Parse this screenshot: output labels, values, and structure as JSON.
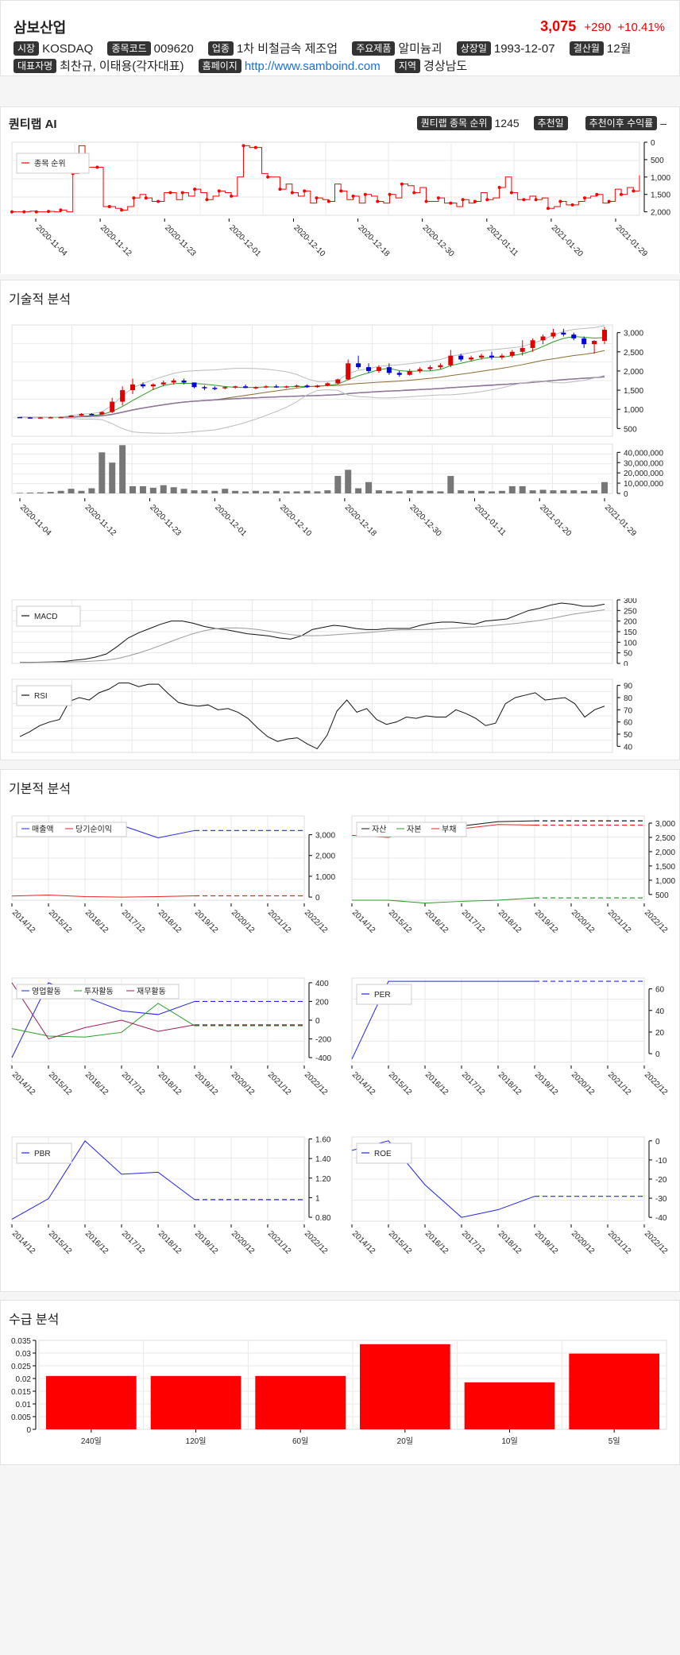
{
  "header": {
    "name": "삼보산업",
    "price": "3,075",
    "change": "+290",
    "change_pct": "+10.41%"
  },
  "info": {
    "market_label": "시장",
    "market": "KOSDAQ",
    "code_label": "종목코드",
    "code": "009620",
    "industry_label": "업종",
    "industry": "1차 비철금속 제조업",
    "product_label": "주요제품",
    "product": "알미늄괴",
    "listed_label": "상장일",
    "listed": "1993-12-07",
    "fiscal_label": "결산월",
    "fiscal": "12월",
    "ceo_label": "대표자명",
    "ceo": "최찬규, 이태용(각자대표)",
    "homepage_label": "홈페이지",
    "homepage": "http://www.samboind.com",
    "region_label": "지역",
    "region": "경상남도"
  },
  "ai": {
    "title": "퀀티랩 AI",
    "rank_label": "퀀티랩 종목 순위",
    "rank": "1245",
    "rec_date_label": "추천일",
    "rec_date": "",
    "rec_return_label": "추천이후 수익률",
    "rec_return": "–"
  },
  "sections": {
    "technical": "기술적 분석",
    "fundamental": "기본적 분석",
    "supply": "수급 분석"
  },
  "colors": {
    "up": "#e00000",
    "down": "#0000dd",
    "line": "#ff0000"
  },
  "chart_data": [
    {
      "id": "rank",
      "type": "line",
      "series": [
        {
          "name": "종목 순위",
          "values": [
            2000,
            2000,
            2000,
            1980,
            2000,
            2000,
            1990,
            2000,
            1950,
            2000,
            900,
            100,
            720,
            720,
            720,
            1850,
            1850,
            1900,
            1950,
            1850,
            1600,
            1500,
            1600,
            1700,
            1700,
            1450,
            1450,
            1650,
            1450,
            1550,
            1350,
            1450,
            1650,
            1550,
            1400,
            1450,
            1550,
            1000,
            100,
            150,
            150,
            900,
            1000,
            1000,
            1350,
            1200,
            1450,
            1550,
            1400,
            1750,
            1600,
            1650,
            1700,
            1200,
            1400,
            1650,
            1550,
            1750,
            1500,
            1550,
            1700,
            1750,
            1500,
            1600,
            1200,
            1250,
            1450,
            1300,
            1700,
            1700,
            1600,
            1750,
            1750,
            1850,
            1650,
            1750,
            1700,
            1450,
            1650,
            1600,
            1300,
            1000,
            1450,
            1650,
            1650,
            1550,
            1650,
            1600,
            1900,
            1850,
            1700,
            1800,
            1800,
            1700,
            1600,
            1550,
            1500,
            1750,
            1700,
            1350,
            1500,
            1300,
            1400,
            950
          ]
        }
      ],
      "x_labels": [
        "2020-11-04",
        "2020-11-12",
        "2020-11-23",
        "2020-12-01",
        "2020-12-10",
        "2020-12-18",
        "2020-12-30",
        "2021-01-11",
        "2021-01-20",
        "2021-01-29"
      ],
      "y_ticks": [
        "0",
        "500",
        "1,000",
        "1,500",
        "2,000"
      ],
      "ylim": [
        2100,
        0
      ]
    },
    {
      "id": "candle",
      "type": "candlestick",
      "y_ticks": [
        "500",
        "1,000",
        "1,500",
        "2,000",
        "2,500",
        "3,000"
      ],
      "ylim": [
        300,
        3200
      ],
      "ohlc": [
        [
          800,
          800,
          780,
          790
        ],
        [
          790,
          800,
          770,
          785
        ],
        [
          785,
          800,
          775,
          790
        ],
        [
          790,
          810,
          780,
          795
        ],
        [
          795,
          810,
          790,
          800
        ],
        [
          800,
          850,
          795,
          840
        ],
        [
          840,
          900,
          830,
          880
        ],
        [
          880,
          900,
          860,
          870
        ],
        [
          870,
          950,
          860,
          930
        ],
        [
          930,
          1300,
          900,
          1200
        ],
        [
          1200,
          1600,
          1100,
          1500
        ],
        [
          1500,
          1800,
          1400,
          1650
        ],
        [
          1650,
          1700,
          1550,
          1600
        ],
        [
          1600,
          1680,
          1500,
          1650
        ],
        [
          1650,
          1750,
          1600,
          1700
        ],
        [
          1700,
          1800,
          1650,
          1750
        ],
        [
          1750,
          1800,
          1650,
          1700
        ],
        [
          1700,
          1700,
          1550,
          1580
        ],
        [
          1580,
          1620,
          1500,
          1560
        ],
        [
          1560,
          1600,
          1500,
          1550
        ],
        [
          1550,
          1600,
          1520,
          1580
        ],
        [
          1580,
          1620,
          1540,
          1600
        ],
        [
          1600,
          1650,
          1550,
          1560
        ],
        [
          1560,
          1600,
          1520,
          1580
        ],
        [
          1580,
          1630,
          1550,
          1600
        ],
        [
          1600,
          1650,
          1560,
          1580
        ],
        [
          1580,
          1620,
          1550,
          1600
        ],
        [
          1600,
          1650,
          1570,
          1620
        ],
        [
          1620,
          1650,
          1560,
          1580
        ],
        [
          1580,
          1640,
          1560,
          1620
        ],
        [
          1620,
          1700,
          1600,
          1680
        ],
        [
          1680,
          1800,
          1650,
          1780
        ],
        [
          1780,
          2300,
          1760,
          2200
        ],
        [
          2200,
          2400,
          2050,
          2100
        ],
        [
          2100,
          2200,
          1950,
          2000
        ],
        [
          2000,
          2150,
          1950,
          2100
        ],
        [
          2100,
          2200,
          1900,
          1950
        ],
        [
          1950,
          2000,
          1850,
          1900
        ],
        [
          1900,
          2050,
          1880,
          2000
        ],
        [
          2000,
          2100,
          1950,
          2050
        ],
        [
          2050,
          2150,
          2000,
          2100
        ],
        [
          2100,
          2200,
          2050,
          2150
        ],
        [
          2150,
          2550,
          2100,
          2400
        ],
        [
          2400,
          2450,
          2250,
          2300
        ],
        [
          2300,
          2400,
          2250,
          2350
        ],
        [
          2350,
          2450,
          2300,
          2400
        ],
        [
          2400,
          2500,
          2300,
          2350
        ],
        [
          2350,
          2450,
          2300,
          2400
        ],
        [
          2400,
          2550,
          2350,
          2500
        ],
        [
          2500,
          2800,
          2400,
          2600
        ],
        [
          2600,
          2850,
          2500,
          2800
        ],
        [
          2800,
          2950,
          2700,
          2900
        ],
        [
          2900,
          3100,
          2850,
          3000
        ],
        [
          3000,
          3100,
          2900,
          2950
        ],
        [
          2950,
          3000,
          2800,
          2850
        ],
        [
          2850,
          2900,
          2600,
          2700
        ],
        [
          2700,
          2800,
          2450,
          2785
        ],
        [
          2785,
          3150,
          2700,
          3075
        ]
      ]
    },
    {
      "id": "volume",
      "type": "bar",
      "y_ticks": [
        "0",
        "10,000,000",
        "20,000,000",
        "30,000,000",
        "40,000,000"
      ],
      "values": [
        500000,
        800000,
        1000000,
        1500000,
        2500000,
        4500000,
        2500000,
        5000000,
        40000000,
        30000000,
        47000000,
        7000000,
        7000000,
        5500000,
        8000000,
        6000000,
        4500000,
        3000000,
        3000000,
        2500000,
        4500000,
        2500000,
        2000000,
        2500000,
        2000000,
        2500000,
        2000000,
        2000000,
        2500000,
        2000000,
        3000000,
        17000000,
        23000000,
        5000000,
        11000000,
        3000000,
        2500000,
        2000000,
        3000000,
        2500000,
        2500000,
        2000000,
        17000000,
        3000000,
        2500000,
        2500000,
        2000000,
        2500000,
        7000000,
        7000000,
        3000000,
        3500000,
        3000000,
        3000000,
        3000000,
        2500000,
        3000000,
        11000000
      ],
      "x_labels": [
        "2020-11-04",
        "2020-11-12",
        "2020-11-23",
        "2020-12-01",
        "2020-12-10",
        "2020-12-18",
        "2020-12-30",
        "2021-01-11",
        "2021-01-20",
        "2021-01-29"
      ]
    },
    {
      "id": "macd",
      "type": "line",
      "legend": "MACD",
      "y_ticks": [
        "0",
        "50",
        "100",
        "150",
        "200",
        "250",
        "300"
      ],
      "ylim": [
        0,
        300
      ]
    },
    {
      "id": "rsi",
      "type": "line",
      "legend": "RSI",
      "y_ticks": [
        "40",
        "50",
        "60",
        "70",
        "80",
        "90"
      ],
      "ylim": [
        35,
        95
      ]
    },
    {
      "id": "sales",
      "type": "line",
      "x_labels": [
        "2014/12",
        "2015/12",
        "2016/12",
        "2017/12",
        "2018/12",
        "2019/12",
        "2020/12",
        "2021/12",
        "2022/12"
      ],
      "series": [
        {
          "name": "매출액",
          "values": [
            null,
            null,
            null,
            3450,
            2850,
            3200,
            3200,
            3200,
            3200
          ]
        },
        {
          "name": "당기순이익",
          "values": [
            50,
            100,
            20,
            0,
            20,
            60,
            60,
            60,
            60
          ]
        }
      ],
      "y_ticks": [
        "0",
        "1,000",
        "2,000",
        "3,000"
      ]
    },
    {
      "id": "balance",
      "type": "line",
      "x_labels": [
        "2014/12",
        "2015/12",
        "2016/12",
        "2017/12",
        "2018/12",
        "2019/12",
        "2020/12",
        "2021/12",
        "2022/12"
      ],
      "series": [
        {
          "name": "자산",
          "values": [
            null,
            null,
            null,
            2900,
            3050,
            3080,
            3080,
            3080,
            3080
          ]
        },
        {
          "name": "자본",
          "values": [
            300,
            300,
            200,
            260,
            300,
            380,
            380,
            380,
            380
          ]
        },
        {
          "name": "부채",
          "values": [
            2570,
            2500,
            2800,
            2800,
            2950,
            2930,
            2930,
            2930,
            2930
          ]
        }
      ],
      "y_ticks": [
        "500",
        "1,000",
        "1,500",
        "2,000",
        "2,500",
        "3,000"
      ]
    },
    {
      "id": "cashflow",
      "type": "line",
      "x_labels": [
        "2014/12",
        "2015/12",
        "2016/12",
        "2017/12",
        "2018/12",
        "2019/12",
        "2020/12",
        "2021/12",
        "2022/12"
      ],
      "series": [
        {
          "name": "영업활동",
          "values": [
            -400,
            400,
            250,
            100,
            60,
            200,
            200,
            200,
            200
          ]
        },
        {
          "name": "투자활동",
          "values": [
            -90,
            -170,
            -180,
            -130,
            180,
            -60,
            -60,
            -60,
            -60
          ]
        },
        {
          "name": "재무활동",
          "values": [
            400,
            -200,
            -80,
            0,
            -120,
            -50,
            -50,
            -50,
            -50
          ]
        }
      ],
      "y_ticks": [
        "-400",
        "-200",
        "0",
        "200",
        "400"
      ]
    },
    {
      "id": "per",
      "type": "line",
      "x_labels": [
        "2014/12",
        "2015/12",
        "2016/12",
        "2017/12",
        "2018/12",
        "2019/12",
        "2020/12",
        "2021/12",
        "2022/12"
      ],
      "series": [
        {
          "name": "PER",
          "values": [
            -5,
            67,
            67,
            67,
            67,
            67,
            67,
            67,
            67
          ]
        }
      ],
      "y_ticks": [
        "0",
        "20",
        "40",
        "60"
      ]
    },
    {
      "id": "pbr",
      "type": "line",
      "x_labels": [
        "2014/12",
        "2015/12",
        "2016/12",
        "2017/12",
        "2018/12",
        "2019/12",
        "2020/12",
        "2021/12",
        "2022/12"
      ],
      "series": [
        {
          "name": "PBR",
          "values": [
            0.78,
            0.99,
            1.58,
            1.24,
            1.26,
            0.98,
            0.98,
            0.98,
            0.98
          ]
        }
      ],
      "y_ticks": [
        "0.80",
        "1",
        "1.20",
        "1.40",
        "1.60"
      ]
    },
    {
      "id": "roe",
      "type": "line",
      "x_labels": [
        "2014/12",
        "2015/12",
        "2016/12",
        "2017/12",
        "2018/12",
        "2019/12",
        "2020/12",
        "2021/12",
        "2022/12"
      ],
      "series": [
        {
          "name": "ROE",
          "values": [
            -5,
            0,
            -23,
            -40,
            -36,
            -29,
            -29,
            -29,
            -29
          ]
        }
      ],
      "y_ticks": [
        "0",
        "-10",
        "-20",
        "-30",
        "-40"
      ]
    },
    {
      "id": "supply",
      "type": "bar",
      "categories": [
        "240일",
        "120일",
        "60일",
        "20일",
        "10일",
        "5일"
      ],
      "values": [
        0.021,
        0.021,
        0.021,
        0.0335,
        0.0185,
        0.0298
      ],
      "y_ticks": [
        "0",
        "0.005",
        "0.01",
        "0.015",
        "0.02",
        "0.025",
        "0.03",
        "0.035"
      ],
      "ylim": [
        0,
        0.035
      ]
    }
  ]
}
